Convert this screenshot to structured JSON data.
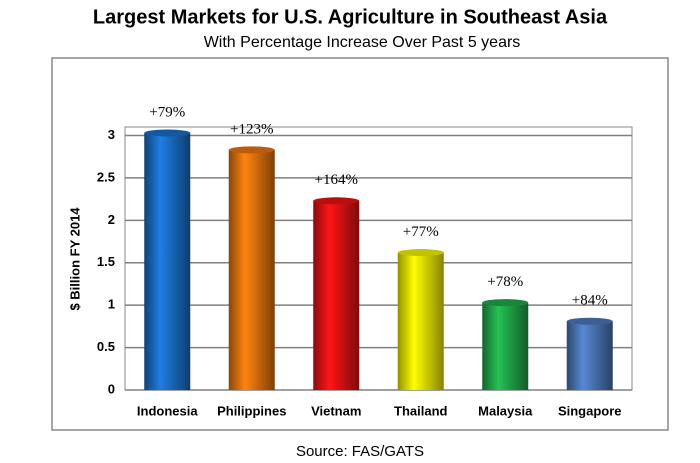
{
  "chart_data": {
    "type": "bar",
    "title": "Largest Markets for U.S. Agriculture in Southeast Asia",
    "subtitle": "With Percentage Increase Over Past 5 years",
    "y_label": "$ Billion FY 2014",
    "source": "Source: FAS/GATS",
    "categories": [
      "Indonesia",
      "Philippines",
      "Vietnam",
      "Thailand",
      "Malaysia",
      "Singapore"
    ],
    "values": [
      3.03,
      2.83,
      2.23,
      1.62,
      1.03,
      0.81
    ],
    "annotations": [
      "+79%",
      "+123%",
      "+164%",
      "+77%",
      "+78%",
      "+84%"
    ],
    "colors": [
      "#1a6ec6",
      "#e8730e",
      "#e81212",
      "#f2f200",
      "#20a84a",
      "#4a78b8"
    ],
    "ylim": [
      0,
      3.1
    ],
    "yticks": [
      0,
      0.5,
      1,
      1.5,
      2,
      2.5,
      3
    ],
    "grid": true
  }
}
